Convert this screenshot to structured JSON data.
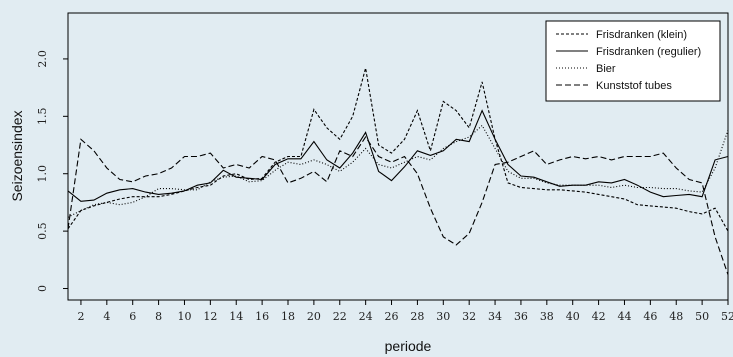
{
  "chart_data": {
    "type": "line",
    "xlabel": "periode",
    "ylabel": "Seizoensindex",
    "xlim": [
      1,
      52
    ],
    "ylim": [
      -0.1,
      2.4
    ],
    "x_ticks": [
      "2",
      "4",
      "6",
      "8",
      "10",
      "12",
      "14",
      "16",
      "18",
      "20",
      "22",
      "24",
      "26",
      "28",
      "30",
      "32",
      "34",
      "36",
      "38",
      "40",
      "42",
      "44",
      "46",
      "48",
      "50",
      "52"
    ],
    "y_ticks": [
      "0",
      "0.5",
      "1.0",
      "1.5",
      "2.0"
    ],
    "y_tick_values": [
      0,
      0.5,
      1.0,
      1.5,
      2.0
    ],
    "legend_position": "top-right",
    "grid": false,
    "x": [
      1,
      2,
      3,
      4,
      5,
      6,
      7,
      8,
      9,
      10,
      11,
      12,
      13,
      14,
      15,
      16,
      17,
      18,
      19,
      20,
      21,
      22,
      23,
      24,
      25,
      26,
      27,
      28,
      29,
      30,
      31,
      32,
      33,
      34,
      35,
      36,
      37,
      38,
      39,
      40,
      41,
      42,
      43,
      44,
      45,
      46,
      47,
      48,
      49,
      50,
      51,
      52
    ],
    "series": [
      {
        "name": "Frisdranken (klein)",
        "dash": "3,2",
        "values": [
          0.52,
          0.68,
          0.72,
          0.75,
          0.78,
          0.8,
          0.8,
          0.8,
          0.82,
          0.85,
          0.88,
          0.9,
          0.98,
          1.0,
          0.95,
          0.96,
          1.1,
          1.15,
          1.15,
          1.56,
          1.4,
          1.3,
          1.5,
          1.92,
          1.25,
          1.18,
          1.3,
          1.55,
          1.2,
          1.63,
          1.55,
          1.4,
          1.8,
          1.3,
          0.92,
          0.88,
          0.87,
          0.86,
          0.86,
          0.85,
          0.84,
          0.82,
          0.8,
          0.78,
          0.73,
          0.72,
          0.71,
          0.7,
          0.67,
          0.65,
          0.7,
          0.5
        ]
      },
      {
        "name": "Frisdranken (regulier)",
        "dash": "",
        "values": [
          0.85,
          0.76,
          0.77,
          0.83,
          0.86,
          0.87,
          0.84,
          0.82,
          0.83,
          0.85,
          0.9,
          0.92,
          1.03,
          0.97,
          0.96,
          0.95,
          1.08,
          1.13,
          1.13,
          1.28,
          1.12,
          1.05,
          1.18,
          1.36,
          1.02,
          0.94,
          1.06,
          1.2,
          1.16,
          1.2,
          1.3,
          1.28,
          1.55,
          1.3,
          1.08,
          0.98,
          0.97,
          0.93,
          0.89,
          0.9,
          0.9,
          0.93,
          0.92,
          0.95,
          0.9,
          0.84,
          0.8,
          0.81,
          0.82,
          0.8,
          1.12,
          1.15
        ]
      },
      {
        "name": "Bier",
        "dash": "1,2",
        "values": [
          0.62,
          0.68,
          0.73,
          0.75,
          0.73,
          0.75,
          0.8,
          0.87,
          0.87,
          0.86,
          0.86,
          0.93,
          0.97,
          0.98,
          0.93,
          0.94,
          1.03,
          1.1,
          1.08,
          1.12,
          1.08,
          1.02,
          1.1,
          1.22,
          1.08,
          1.05,
          1.1,
          1.15,
          1.12,
          1.22,
          1.28,
          1.32,
          1.42,
          1.22,
          1.02,
          0.96,
          0.96,
          0.92,
          0.9,
          0.9,
          0.9,
          0.9,
          0.88,
          0.9,
          0.88,
          0.88,
          0.87,
          0.87,
          0.85,
          0.84,
          1.05,
          1.38
        ]
      },
      {
        "name": "Kunststof tubes",
        "dash": "6,3",
        "values": [
          0.52,
          1.3,
          1.2,
          1.05,
          0.95,
          0.93,
          0.98,
          1.0,
          1.05,
          1.15,
          1.15,
          1.18,
          1.05,
          1.08,
          1.05,
          1.15,
          1.12,
          0.92,
          0.96,
          1.02,
          0.93,
          1.2,
          1.15,
          1.32,
          1.15,
          1.1,
          1.15,
          1.0,
          0.7,
          0.45,
          0.38,
          0.48,
          0.75,
          1.08,
          1.1,
          1.15,
          1.2,
          1.08,
          1.12,
          1.15,
          1.13,
          1.15,
          1.12,
          1.15,
          1.15,
          1.15,
          1.18,
          1.05,
          0.95,
          0.92,
          0.45,
          0.12
        ]
      }
    ]
  }
}
